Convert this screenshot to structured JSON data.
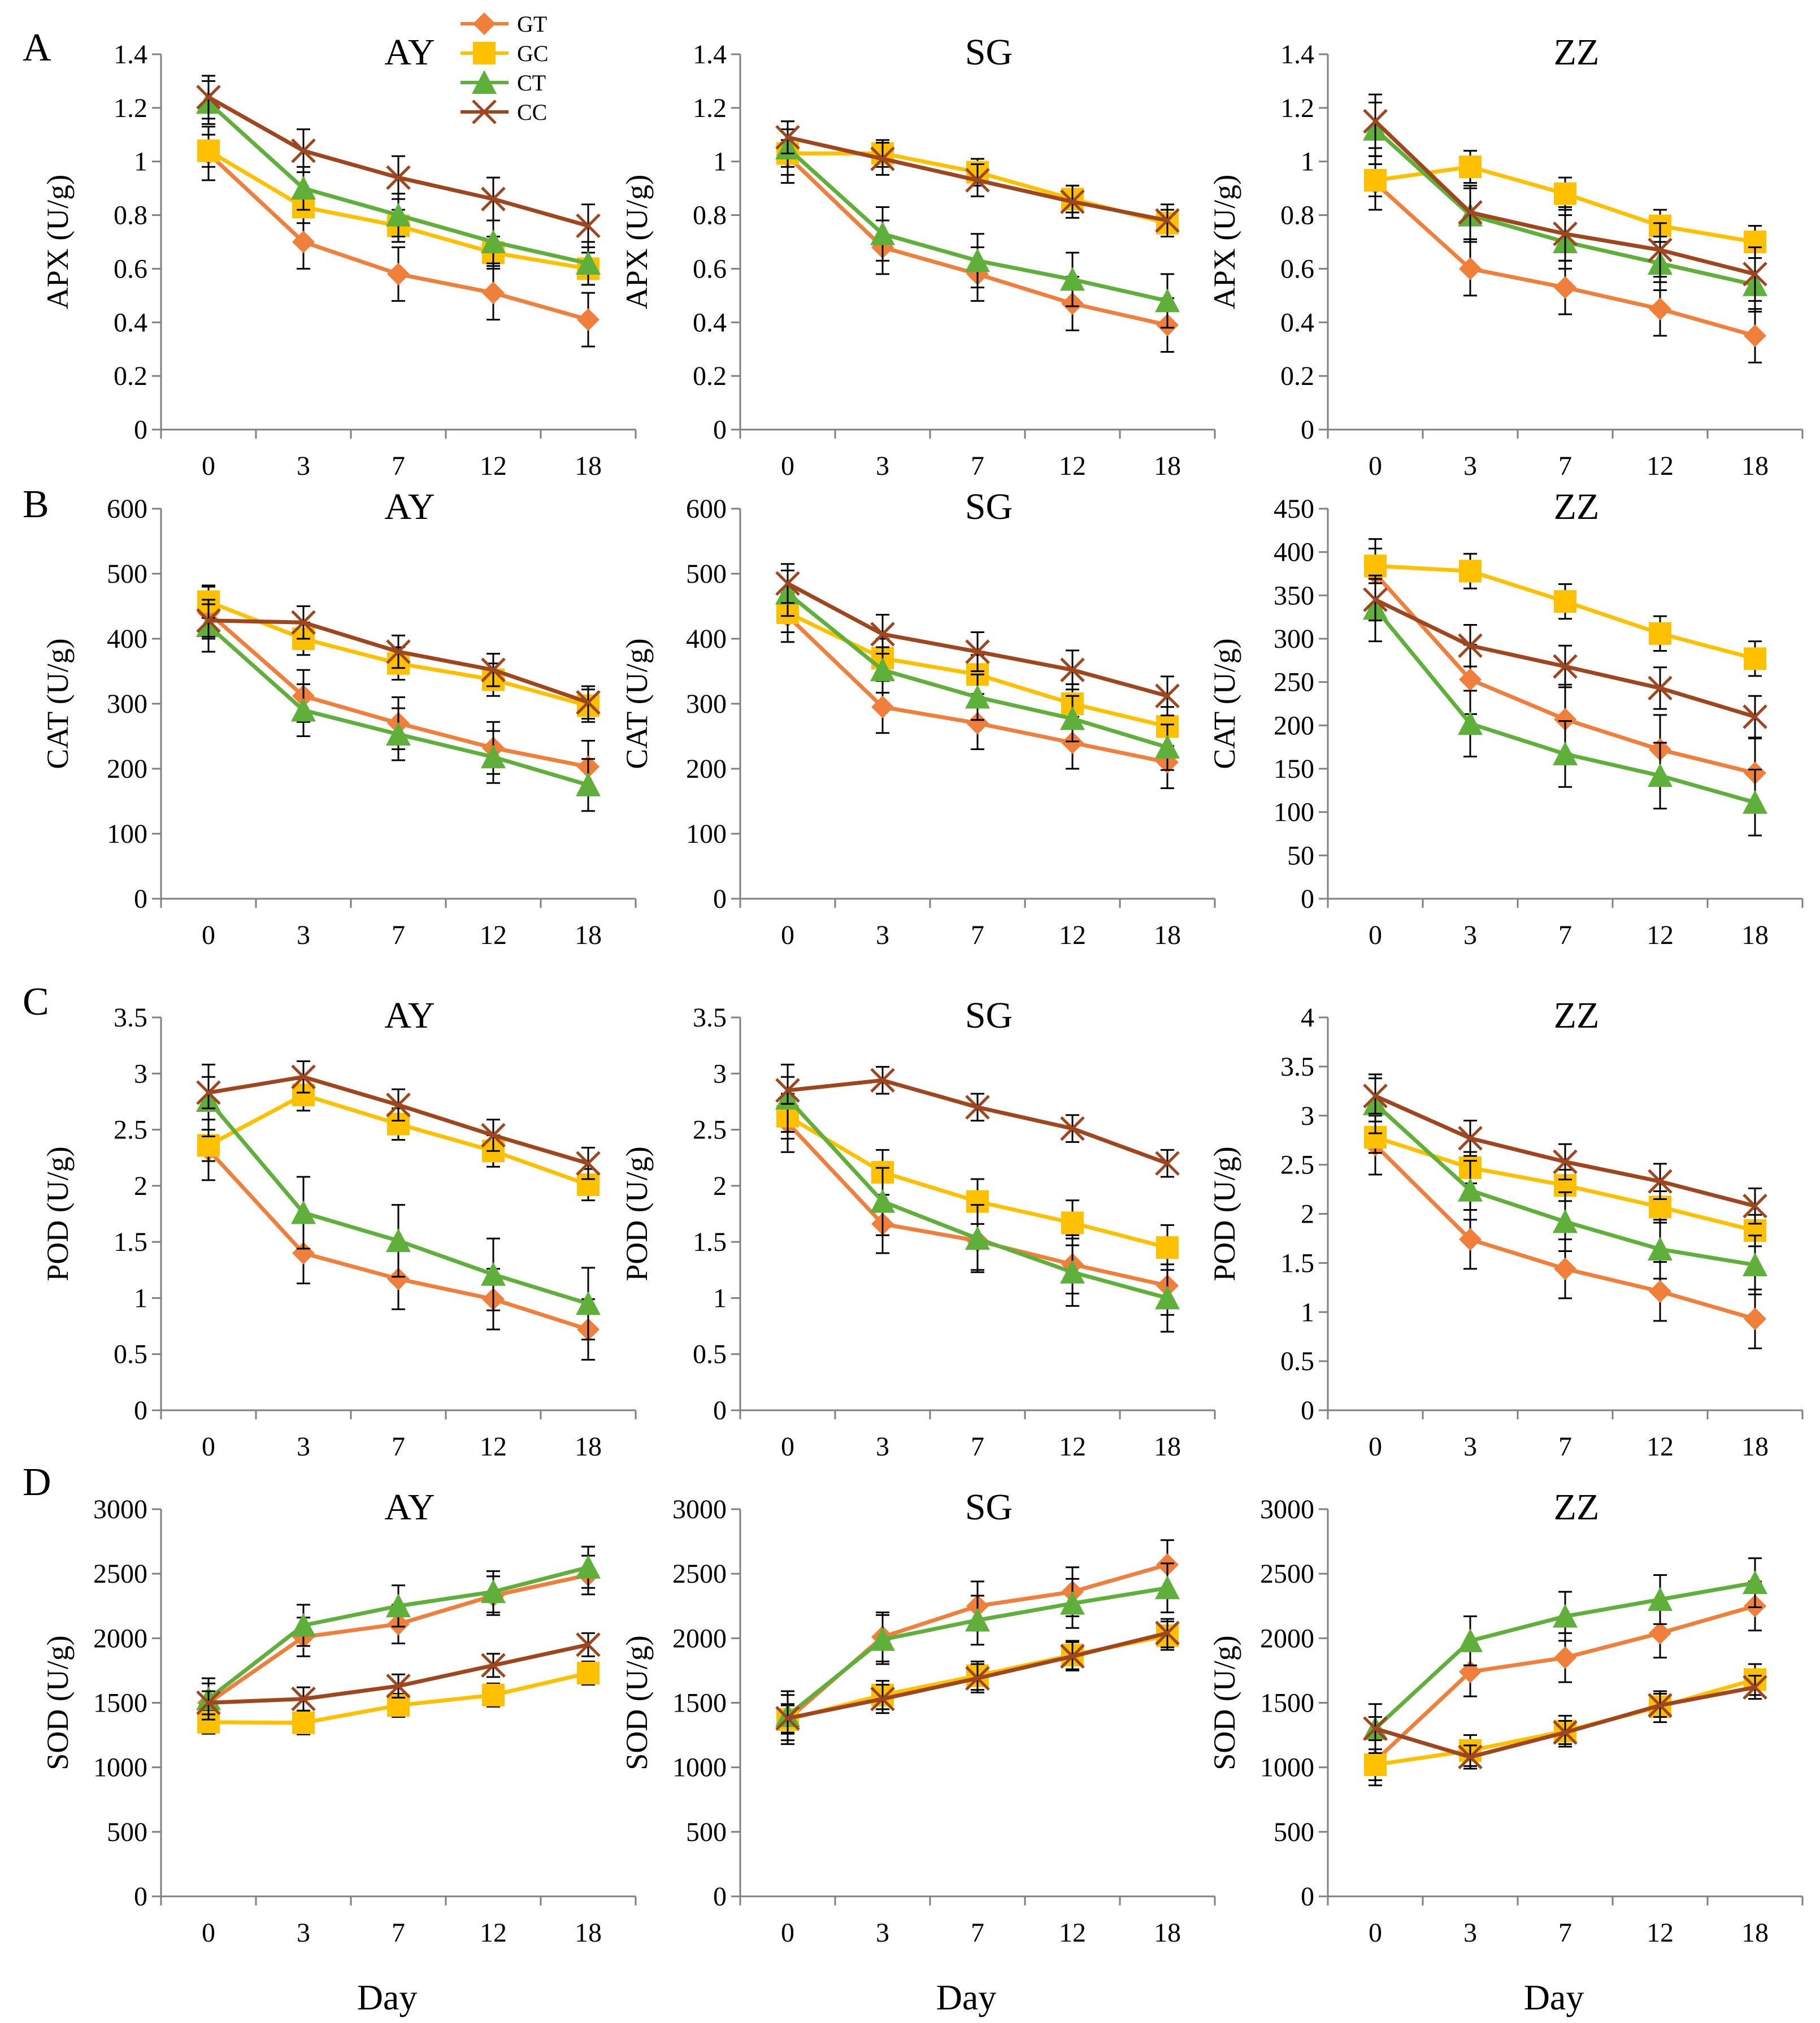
{
  "figure": {
    "row_labels": [
      "A",
      "B",
      "C",
      "D"
    ],
    "x_axis_title": "Day",
    "legend": [
      {
        "name": "GT",
        "color": "#F07F3C",
        "marker": "diamond"
      },
      {
        "name": "GC",
        "color": "#FFC000",
        "marker": "square"
      },
      {
        "name": "CT",
        "color": "#5FAF3B",
        "marker": "triangle"
      },
      {
        "name": "CC",
        "color": "#A0461E",
        "marker": "cross"
      }
    ]
  },
  "chart_data": [
    {
      "type": "line",
      "row": "A",
      "title": "AY",
      "ylabel": "APX (U/g)",
      "categories": [
        "0",
        "3",
        "7",
        "12",
        "18"
      ],
      "ylim": [
        0,
        1.4
      ],
      "ytick_step": 0.2,
      "ytick_labels": [
        "0",
        "0.2",
        "0.4",
        "0.6",
        "0.8",
        "1",
        "1.2",
        "1.4"
      ],
      "series": [
        {
          "name": "GT",
          "values": [
            1.03,
            0.7,
            0.58,
            0.51,
            0.41
          ],
          "errors": [
            0.1,
            0.1,
            0.1,
            0.1,
            0.1
          ]
        },
        {
          "name": "GC",
          "values": [
            1.04,
            0.83,
            0.76,
            0.66,
            0.6
          ],
          "errors": [
            0.06,
            0.06,
            0.06,
            0.06,
            0.06
          ]
        },
        {
          "name": "CT",
          "values": [
            1.22,
            0.9,
            0.8,
            0.7,
            0.62
          ],
          "errors": [
            0.08,
            0.08,
            0.08,
            0.08,
            0.08
          ]
        },
        {
          "name": "CC",
          "values": [
            1.24,
            1.04,
            0.94,
            0.86,
            0.76
          ],
          "errors": [
            0.08,
            0.08,
            0.08,
            0.08,
            0.08
          ]
        }
      ]
    },
    {
      "type": "line",
      "row": "A",
      "title": "SG",
      "ylabel": "APX (U/g)",
      "categories": [
        "0",
        "3",
        "7",
        "12",
        "18"
      ],
      "ylim": [
        0,
        1.4
      ],
      "ytick_step": 0.2,
      "ytick_labels": [
        "0",
        "0.2",
        "0.4",
        "0.6",
        "0.8",
        "1",
        "1.2",
        "1.4"
      ],
      "series": [
        {
          "name": "GT",
          "values": [
            1.02,
            0.68,
            0.58,
            0.47,
            0.39
          ],
          "errors": [
            0.1,
            0.1,
            0.1,
            0.1,
            0.1
          ]
        },
        {
          "name": "GC",
          "values": [
            1.03,
            1.03,
            0.96,
            0.86,
            0.77
          ],
          "errors": [
            0.05,
            0.05,
            0.05,
            0.05,
            0.05
          ]
        },
        {
          "name": "CT",
          "values": [
            1.05,
            0.73,
            0.63,
            0.56,
            0.48
          ],
          "errors": [
            0.1,
            0.1,
            0.1,
            0.1,
            0.1
          ]
        },
        {
          "name": "CC",
          "values": [
            1.09,
            1.01,
            0.93,
            0.85,
            0.78
          ],
          "errors": [
            0.06,
            0.06,
            0.06,
            0.06,
            0.06
          ]
        }
      ]
    },
    {
      "type": "line",
      "row": "A",
      "title": "ZZ",
      "ylabel": "APX (U/g)",
      "categories": [
        "0",
        "3",
        "7",
        "12",
        "18"
      ],
      "ylim": [
        0,
        1.4
      ],
      "ytick_step": 0.2,
      "ytick_labels": [
        "0",
        "0.2",
        "0.4",
        "0.6",
        "0.8",
        "1",
        "1.2",
        "1.4"
      ],
      "series": [
        {
          "name": "GT",
          "values": [
            0.92,
            0.6,
            0.53,
            0.45,
            0.35
          ],
          "errors": [
            0.1,
            0.1,
            0.1,
            0.1,
            0.1
          ]
        },
        {
          "name": "GC",
          "values": [
            0.93,
            0.98,
            0.88,
            0.76,
            0.7
          ],
          "errors": [
            0.06,
            0.06,
            0.06,
            0.06,
            0.06
          ]
        },
        {
          "name": "CT",
          "values": [
            1.12,
            0.8,
            0.7,
            0.62,
            0.54
          ],
          "errors": [
            0.1,
            0.1,
            0.1,
            0.1,
            0.1
          ]
        },
        {
          "name": "CC",
          "values": [
            1.15,
            0.81,
            0.73,
            0.67,
            0.58
          ],
          "errors": [
            0.1,
            0.1,
            0.1,
            0.1,
            0.1
          ]
        }
      ]
    },
    {
      "type": "line",
      "row": "B",
      "title": "AY",
      "ylabel": "CAT (U/g)",
      "categories": [
        "0",
        "3",
        "7",
        "12",
        "18"
      ],
      "ylim": [
        0,
        600
      ],
      "ytick_step": 100,
      "ytick_labels": [
        "0",
        "100",
        "200",
        "300",
        "400",
        "500",
        "600"
      ],
      "series": [
        {
          "name": "GT",
          "values": [
            440,
            312,
            270,
            232,
            203
          ],
          "errors": [
            40,
            40,
            40,
            40,
            40
          ]
        },
        {
          "name": "GC",
          "values": [
            457,
            400,
            362,
            337,
            297
          ],
          "errors": [
            25,
            25,
            25,
            25,
            25
          ]
        },
        {
          "name": "CT",
          "values": [
            420,
            290,
            253,
            218,
            175
          ],
          "errors": [
            40,
            40,
            40,
            40,
            40
          ]
        },
        {
          "name": "CC",
          "values": [
            428,
            425,
            380,
            352,
            302
          ],
          "errors": [
            25,
            25,
            25,
            25,
            25
          ]
        }
      ]
    },
    {
      "type": "line",
      "row": "B",
      "title": "SG",
      "ylabel": "CAT (U/g)",
      "categories": [
        "0",
        "3",
        "7",
        "12",
        "18"
      ],
      "ylim": [
        0,
        600
      ],
      "ytick_step": 100,
      "ytick_labels": [
        "0",
        "100",
        "200",
        "300",
        "400",
        "500",
        "600"
      ],
      "series": [
        {
          "name": "GT",
          "values": [
            435,
            295,
            270,
            240,
            210
          ],
          "errors": [
            40,
            40,
            40,
            40,
            40
          ]
        },
        {
          "name": "GC",
          "values": [
            440,
            370,
            345,
            300,
            265
          ],
          "errors": [
            30,
            30,
            30,
            30,
            30
          ]
        },
        {
          "name": "CT",
          "values": [
            470,
            352,
            310,
            277,
            233
          ],
          "errors": [
            35,
            35,
            35,
            35,
            35
          ]
        },
        {
          "name": "CC",
          "values": [
            485,
            407,
            380,
            352,
            312
          ],
          "errors": [
            30,
            30,
            30,
            30,
            30
          ]
        }
      ]
    },
    {
      "type": "line",
      "row": "B",
      "title": "ZZ",
      "ylabel": "CAT (U/g)",
      "categories": [
        "0",
        "3",
        "7",
        "12",
        "18"
      ],
      "ylim": [
        0,
        450
      ],
      "ytick_step": 50,
      "ytick_labels": [
        "0",
        "50",
        "100",
        "150",
        "200",
        "250",
        "300",
        "350",
        "400",
        "450"
      ],
      "series": [
        {
          "name": "GT",
          "values": [
            375,
            253,
            207,
            172,
            145
          ],
          "errors": [
            40,
            40,
            40,
            40,
            40
          ]
        },
        {
          "name": "GC",
          "values": [
            384,
            378,
            343,
            306,
            277
          ],
          "errors": [
            20,
            20,
            20,
            20,
            20
          ]
        },
        {
          "name": "CT",
          "values": [
            335,
            202,
            167,
            142,
            111
          ],
          "errors": [
            38,
            38,
            38,
            38,
            38
          ]
        },
        {
          "name": "CC",
          "values": [
            345,
            292,
            268,
            243,
            210
          ],
          "errors": [
            24,
            24,
            24,
            24,
            24
          ]
        }
      ]
    },
    {
      "type": "line",
      "row": "C",
      "title": "AY",
      "ylabel": "POD (U/g)",
      "categories": [
        "0",
        "3",
        "7",
        "12",
        "18"
      ],
      "ylim": [
        0,
        3.5
      ],
      "ytick_step": 0.5,
      "ytick_labels": [
        "0",
        "0.5",
        "1",
        "1.5",
        "2",
        "2.5",
        "3",
        "3.5"
      ],
      "series": [
        {
          "name": "GT",
          "values": [
            2.32,
            1.4,
            1.17,
            0.99,
            0.72
          ],
          "errors": [
            0.27,
            0.27,
            0.27,
            0.27,
            0.27
          ]
        },
        {
          "name": "GC",
          "values": [
            2.36,
            2.81,
            2.55,
            2.31,
            2.01
          ],
          "errors": [
            0.14,
            0.14,
            0.14,
            0.14,
            0.14
          ]
        },
        {
          "name": "CT",
          "values": [
            2.76,
            1.76,
            1.51,
            1.21,
            0.95
          ],
          "errors": [
            0.32,
            0.32,
            0.32,
            0.32,
            0.32
          ]
        },
        {
          "name": "CC",
          "values": [
            2.83,
            2.97,
            2.72,
            2.45,
            2.2
          ],
          "errors": [
            0.14,
            0.14,
            0.14,
            0.14,
            0.14
          ]
        }
      ]
    },
    {
      "type": "line",
      "row": "C",
      "title": "SG",
      "ylabel": "POD (U/g)",
      "categories": [
        "0",
        "3",
        "7",
        "12",
        "18"
      ],
      "ylim": [
        0,
        3.5
      ],
      "ytick_step": 0.5,
      "ytick_labels": [
        "0",
        "0.5",
        "1",
        "1.5",
        "2",
        "2.5",
        "3",
        "3.5"
      ],
      "series": [
        {
          "name": "GT",
          "values": [
            2.56,
            1.66,
            1.51,
            1.3,
            1.11
          ],
          "errors": [
            0.26,
            0.26,
            0.26,
            0.26,
            0.26
          ]
        },
        {
          "name": "GC",
          "values": [
            2.62,
            2.12,
            1.86,
            1.67,
            1.45
          ],
          "errors": [
            0.2,
            0.2,
            0.2,
            0.2,
            0.2
          ]
        },
        {
          "name": "CT",
          "values": [
            2.78,
            1.86,
            1.53,
            1.23,
            1.0
          ],
          "errors": [
            0.3,
            0.3,
            0.3,
            0.3,
            0.3
          ]
        },
        {
          "name": "CC",
          "values": [
            2.85,
            2.94,
            2.7,
            2.51,
            2.2
          ],
          "errors": [
            0.12,
            0.12,
            0.12,
            0.12,
            0.12
          ]
        }
      ]
    },
    {
      "type": "line",
      "row": "C",
      "title": "ZZ",
      "ylabel": "POD (U/g)",
      "categories": [
        "0",
        "3",
        "7",
        "12",
        "18"
      ],
      "ylim": [
        0,
        4
      ],
      "ytick_step": 0.5,
      "ytick_labels": [
        "0",
        "0.5",
        "1",
        "1.5",
        "2",
        "2.5",
        "3",
        "3.5",
        "4"
      ],
      "series": [
        {
          "name": "GT",
          "values": [
            2.7,
            1.74,
            1.44,
            1.21,
            0.93
          ],
          "errors": [
            0.3,
            0.3,
            0.3,
            0.3,
            0.3
          ]
        },
        {
          "name": "GC",
          "values": [
            2.78,
            2.47,
            2.29,
            2.07,
            1.83
          ],
          "errors": [
            0.16,
            0.16,
            0.16,
            0.16,
            0.16
          ]
        },
        {
          "name": "CT",
          "values": [
            3.12,
            2.24,
            1.92,
            1.64,
            1.48
          ],
          "errors": [
            0.3,
            0.3,
            0.3,
            0.3,
            0.3
          ]
        },
        {
          "name": "CC",
          "values": [
            3.2,
            2.77,
            2.53,
            2.33,
            2.08
          ],
          "errors": [
            0.18,
            0.18,
            0.18,
            0.18,
            0.18
          ]
        }
      ]
    },
    {
      "type": "line",
      "row": "D",
      "title": "AY",
      "ylabel": "SOD (U/g)",
      "xlabel": "Day",
      "categories": [
        "0",
        "3",
        "7",
        "12",
        "18"
      ],
      "ylim": [
        0,
        3000
      ],
      "ytick_step": 500,
      "ytick_labels": [
        "0",
        "500",
        "1000",
        "1500",
        "2000",
        "2500",
        "3000"
      ],
      "series": [
        {
          "name": "GT",
          "values": [
            1500,
            2010,
            2110,
            2330,
            2490
          ],
          "errors": [
            150,
            150,
            150,
            150,
            150
          ]
        },
        {
          "name": "GC",
          "values": [
            1350,
            1345,
            1480,
            1560,
            1730
          ],
          "errors": [
            90,
            90,
            90,
            90,
            90
          ]
        },
        {
          "name": "CT",
          "values": [
            1530,
            2100,
            2250,
            2360,
            2550
          ],
          "errors": [
            160,
            160,
            160,
            160,
            160
          ]
        },
        {
          "name": "CC",
          "values": [
            1500,
            1530,
            1630,
            1790,
            1950
          ],
          "errors": [
            90,
            90,
            90,
            90,
            90
          ]
        }
      ]
    },
    {
      "type": "line",
      "row": "D",
      "title": "SG",
      "ylabel": "SOD (U/g)",
      "xlabel": "Day",
      "categories": [
        "0",
        "3",
        "7",
        "12",
        "18"
      ],
      "ylim": [
        0,
        3000
      ],
      "ytick_step": 500,
      "ytick_labels": [
        "0",
        "500",
        "1000",
        "1500",
        "2000",
        "2500",
        "3000"
      ],
      "series": [
        {
          "name": "GT",
          "values": [
            1370,
            2010,
            2250,
            2360,
            2570
          ],
          "errors": [
            190,
            190,
            190,
            190,
            190
          ]
        },
        {
          "name": "GC",
          "values": [
            1370,
            1560,
            1710,
            1870,
            2020
          ],
          "errors": [
            110,
            110,
            110,
            110,
            110
          ]
        },
        {
          "name": "CT",
          "values": [
            1400,
            1990,
            2140,
            2270,
            2390
          ],
          "errors": [
            190,
            190,
            190,
            190,
            190
          ]
        },
        {
          "name": "CC",
          "values": [
            1380,
            1530,
            1690,
            1860,
            2040
          ],
          "errors": [
            110,
            110,
            110,
            110,
            110
          ]
        }
      ]
    },
    {
      "type": "line",
      "row": "D",
      "title": "ZZ",
      "ylabel": "SOD (U/g)",
      "xlabel": "Day",
      "categories": [
        "0",
        "3",
        "7",
        "12",
        "18"
      ],
      "ylim": [
        0,
        3000
      ],
      "ytick_step": 500,
      "ytick_labels": [
        "0",
        "500",
        "1000",
        "1500",
        "2000",
        "2500",
        "3000"
      ],
      "series": [
        {
          "name": "GT",
          "values": [
            1050,
            1740,
            1850,
            2040,
            2250
          ],
          "errors": [
            190,
            190,
            190,
            190,
            190
          ]
        },
        {
          "name": "GC",
          "values": [
            1020,
            1130,
            1280,
            1470,
            1680
          ],
          "errors": [
            120,
            120,
            120,
            120,
            120
          ]
        },
        {
          "name": "CT",
          "values": [
            1300,
            1980,
            2170,
            2300,
            2430
          ],
          "errors": [
            190,
            190,
            190,
            190,
            190
          ]
        },
        {
          "name": "CC",
          "values": [
            1300,
            1080,
            1270,
            1480,
            1620
          ],
          "errors": [
            90,
            90,
            90,
            90,
            90
          ]
        }
      ]
    }
  ]
}
